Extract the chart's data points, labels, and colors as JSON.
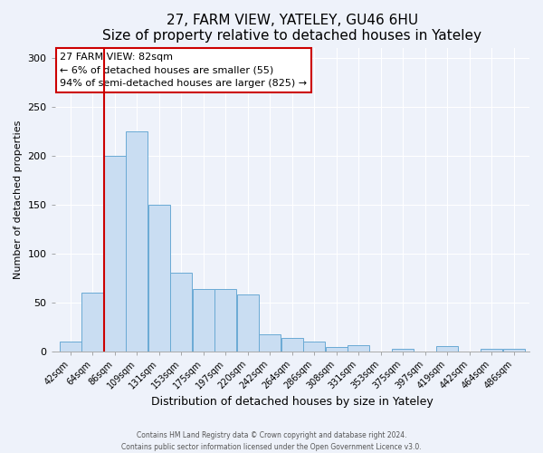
{
  "title": "27, FARM VIEW, YATELEY, GU46 6HU",
  "subtitle": "Size of property relative to detached houses in Yateley",
  "xlabel": "Distribution of detached houses by size in Yateley",
  "ylabel": "Number of detached properties",
  "bin_labels": [
    "42sqm",
    "64sqm",
    "86sqm",
    "109sqm",
    "131sqm",
    "153sqm",
    "175sqm",
    "197sqm",
    "220sqm",
    "242sqm",
    "264sqm",
    "286sqm",
    "308sqm",
    "331sqm",
    "353sqm",
    "375sqm",
    "397sqm",
    "419sqm",
    "442sqm",
    "464sqm",
    "486sqm"
  ],
  "bar_values": [
    10,
    60,
    200,
    225,
    150,
    80,
    63,
    63,
    58,
    17,
    13,
    10,
    4,
    6,
    0,
    2,
    0,
    5,
    0,
    2,
    2
  ],
  "bar_color": "#c9ddf2",
  "bar_edge_color": "#6aaad4",
  "vline_color": "#cc0000",
  "vline_x_index": 2,
  "annotation_title": "27 FARM VIEW: 82sqm",
  "annotation_line1": "← 6% of detached houses are smaller (55)",
  "annotation_line2": "94% of semi-detached houses are larger (825) →",
  "annotation_box_color": "#ffffff",
  "annotation_box_edge": "#cc0000",
  "ylim": [
    0,
    310
  ],
  "yticks": [
    0,
    50,
    100,
    150,
    200,
    250,
    300
  ],
  "footer1": "Contains HM Land Registry data © Crown copyright and database right 2024.",
  "footer2": "Contains public sector information licensed under the Open Government Licence v3.0.",
  "background_color": "#eef2fa",
  "plot_bg_color": "#eef2fa",
  "grid_color": "#ffffff",
  "title_fontsize": 11,
  "subtitle_fontsize": 9
}
